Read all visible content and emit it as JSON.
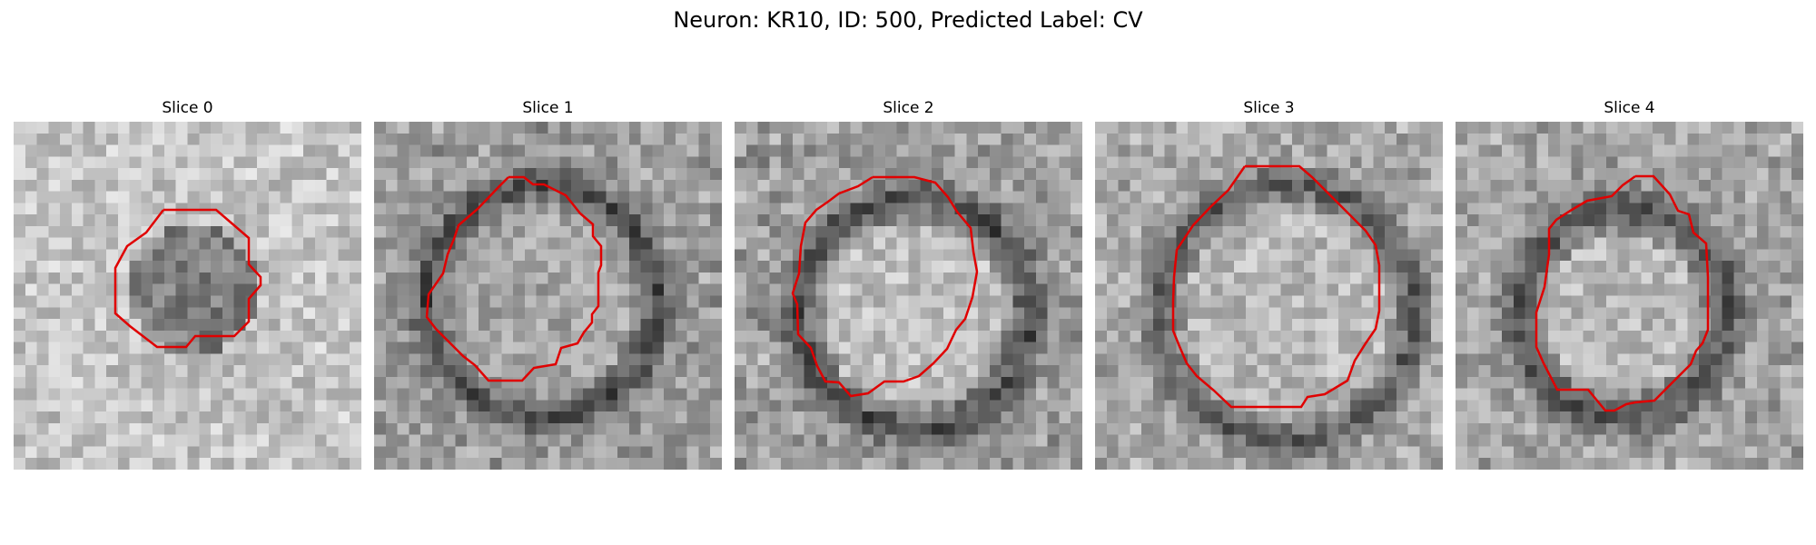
{
  "figure": {
    "title": "Neuron: KR10, ID: 500, Predicted Label: CV"
  },
  "panels": [
    {
      "title": "Slice 0"
    },
    {
      "title": "Slice 1"
    },
    {
      "title": "Slice 2"
    },
    {
      "title": "Slice 3"
    },
    {
      "title": "Slice 4"
    }
  ],
  "colors": {
    "contour": "#e00000",
    "colormap": "grayscale"
  }
}
